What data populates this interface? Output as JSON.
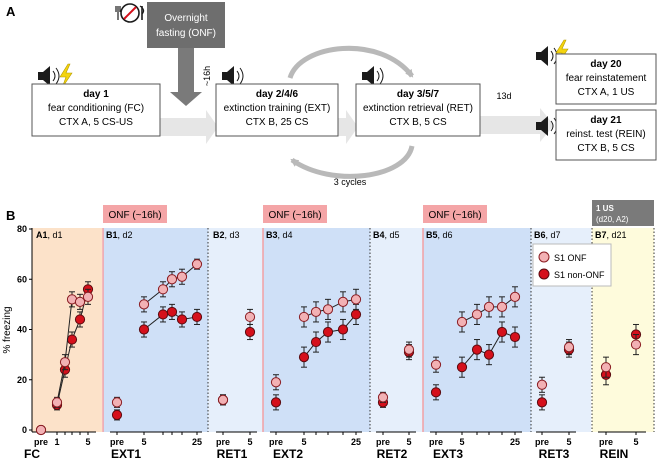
{
  "panelA": {
    "label": "A",
    "fasting_box": {
      "line1": "Overnight",
      "line2": "fasting (ONF)"
    },
    "interval_16h": "~16h",
    "day1": {
      "title": "day 1",
      "line1": "fear conditioning (FC)",
      "line2": "CTX A, 5 CS-US"
    },
    "day246": {
      "title": "day 2/4/6",
      "line1": "extinction training (EXT)",
      "line2": "CTX B, 25 CS"
    },
    "day357": {
      "title": "day 3/5/7",
      "line1": "extinction retrieval (RET)",
      "line2": "CTX B, 5 CS"
    },
    "cycles": "3 cycles",
    "gap_13d": "13d",
    "day20": {
      "title": "day 20",
      "line1": "fear reinstatement",
      "line2": "CTX A, 1 US"
    },
    "day21": {
      "title": "day 21",
      "line1": "reinst. test (REIN)",
      "line2": "CTX B, 5 CS"
    }
  },
  "panelB": {
    "label": "B",
    "onf_badges": [
      "ONF (~16h)",
      "ONF (~16h)",
      "ONF (~16h)"
    ],
    "us_badge": {
      "line1": "1 US",
      "line2": "(d20, A2)"
    },
    "sublabels": [
      {
        "id": "A1",
        "day": ", d1"
      },
      {
        "id": "B1",
        "day": ", d2"
      },
      {
        "id": "B2",
        "day": ", d3"
      },
      {
        "id": "B3",
        "day": ", d4"
      },
      {
        "id": "B4",
        "day": ", d5"
      },
      {
        "id": "B5",
        "day": ", d6"
      },
      {
        "id": "B6",
        "day": ", d7"
      },
      {
        "id": "B7",
        "day": ", d21"
      }
    ],
    "group_labels": [
      "FC",
      "EXT1",
      "RET1",
      "EXT2",
      "RET2",
      "EXT3",
      "RET3",
      "REIN"
    ],
    "legend": [
      "S1 ONF",
      "S1 non-ONF"
    ]
  },
  "colors": {
    "onf": "#f2b1b4",
    "non_onf": "#d5101b",
    "fc_bg": "#fce2c9",
    "ext_bg": "#cfe0f7",
    "ret_bg": "#e6effb",
    "rein_bg": "#fefbdc",
    "badge_onf": "#f4a5a7",
    "badge_us": "#7a7a7a"
  },
  "chart_data": {
    "type": "scatter",
    "title": "",
    "xlabel": "",
    "ylabel": "% freezing",
    "ylim": [
      0,
      80
    ],
    "yticks": [
      0,
      20,
      40,
      60,
      80
    ],
    "series_names": [
      "S1 ONF",
      "S1 non-ONF"
    ],
    "panels": [
      {
        "name": "FC",
        "x": [
          "pre",
          "1",
          "2",
          "3",
          "4",
          "5"
        ],
        "tick_labels": [
          "pre",
          "1",
          "",
          "",
          "",
          "5"
        ],
        "onf": [
          0,
          11,
          27,
          52,
          51,
          53
        ],
        "onf_err": [
          0,
          2,
          3,
          3,
          3,
          3
        ],
        "non_onf": [
          0,
          10,
          24,
          36,
          44,
          56
        ],
        "non_onf_err": [
          0,
          2,
          3,
          3,
          3,
          3
        ]
      },
      {
        "name": "EXT1",
        "x": [
          "pre",
          "5",
          "10",
          "15",
          "20",
          "25"
        ],
        "tick_labels": [
          "pre",
          "5",
          "",
          "",
          "",
          "25"
        ],
        "onf": [
          11,
          50,
          56,
          60,
          61,
          66
        ],
        "onf_err": [
          2,
          3,
          3,
          3,
          3,
          2
        ],
        "non_onf": [
          6,
          40,
          46,
          47,
          44,
          45
        ],
        "non_onf_err": [
          2,
          3,
          3,
          3,
          3,
          3
        ]
      },
      {
        "name": "RET1",
        "x": [
          "pre",
          "5"
        ],
        "tick_labels": [
          "pre",
          "5"
        ],
        "onf": [
          12,
          45
        ],
        "onf_err": [
          2,
          3
        ],
        "non_onf": [
          12,
          39
        ],
        "non_onf_err": [
          2,
          3
        ]
      },
      {
        "name": "EXT2",
        "x": [
          "pre",
          "5",
          "10",
          "15",
          "20",
          "25"
        ],
        "tick_labels": [
          "pre",
          "5",
          "",
          "",
          "",
          "25"
        ],
        "onf": [
          19,
          45,
          47,
          48,
          51,
          52
        ],
        "onf_err": [
          3,
          4,
          4,
          4,
          4,
          4
        ],
        "non_onf": [
          11,
          29,
          35,
          39,
          40,
          46
        ],
        "non_onf_err": [
          3,
          4,
          4,
          4,
          4,
          4
        ]
      },
      {
        "name": "RET2",
        "x": [
          "pre",
          "5"
        ],
        "tick_labels": [
          "pre",
          "5"
        ],
        "onf": [
          13,
          32
        ],
        "onf_err": [
          2,
          3
        ],
        "non_onf": [
          11,
          31
        ],
        "non_onf_err": [
          2,
          3
        ]
      },
      {
        "name": "EXT3",
        "x": [
          "pre",
          "5",
          "10",
          "15",
          "20",
          "25"
        ],
        "tick_labels": [
          "pre",
          "5",
          "",
          "",
          "",
          "25"
        ],
        "onf": [
          26,
          43,
          46,
          49,
          49,
          53
        ],
        "onf_err": [
          3,
          4,
          4,
          4,
          4,
          4
        ],
        "non_onf": [
          15,
          25,
          32,
          30,
          39,
          37
        ],
        "non_onf_err": [
          3,
          4,
          4,
          4,
          4,
          4
        ]
      },
      {
        "name": "RET3",
        "x": [
          "pre",
          "5"
        ],
        "tick_labels": [
          "pre",
          "5"
        ],
        "onf": [
          18,
          33
        ],
        "onf_err": [
          3,
          3
        ],
        "non_onf": [
          11,
          32
        ],
        "non_onf_err": [
          3,
          3
        ]
      },
      {
        "name": "REIN",
        "x": [
          "pre",
          "5"
        ],
        "tick_labels": [
          "pre",
          "5"
        ],
        "onf": [
          25,
          34
        ],
        "onf_err": [
          4,
          4
        ],
        "non_onf": [
          22,
          38
        ],
        "non_onf_err": [
          4,
          4
        ]
      }
    ]
  }
}
